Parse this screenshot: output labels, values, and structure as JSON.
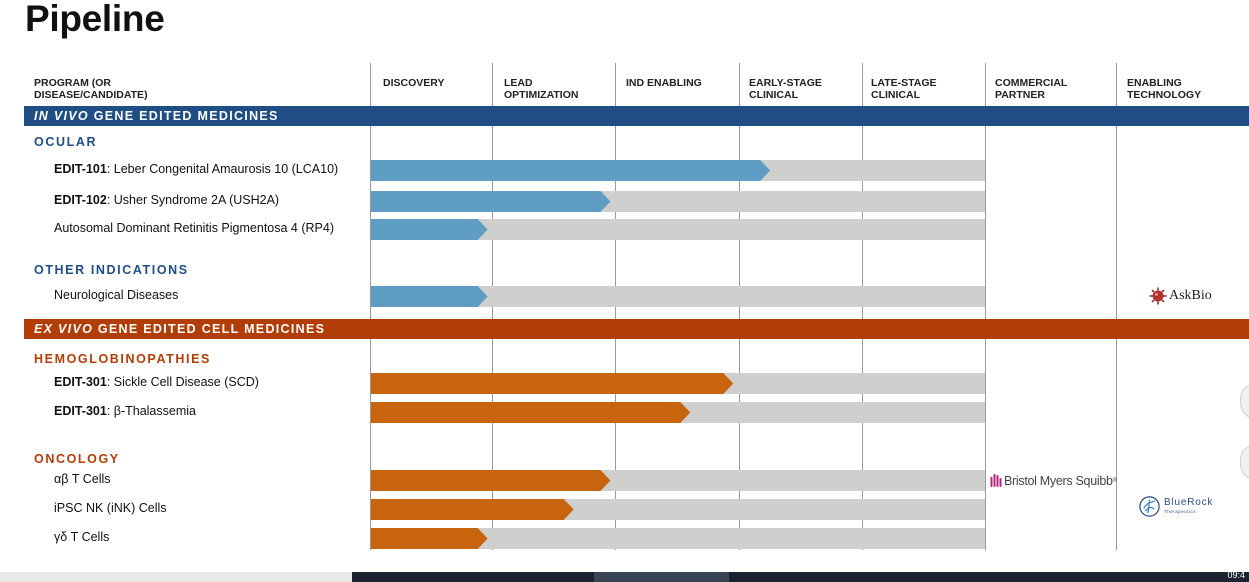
{
  "title": "Pipeline",
  "colors": {
    "invivo": "#1f4e84",
    "exvivo": "#b23d06",
    "ocular_bar": "#5f9dc4",
    "orange_bar": "#c8630e",
    "track": "#cfd0ce",
    "invivo_text": "#1f4e84",
    "exvivo_text": "#b23d06"
  },
  "columns": {
    "program": "PROGRAM (OR\nDISEASE/CANDIDATE)",
    "discovery": "DISCOVERY",
    "lead": "LEAD\nOPTIMIZATION",
    "ind": "IND ENABLING",
    "early": "EARLY-STAGE\nCLINICAL",
    "late": "LATE-STAGE\nCLINICAL",
    "partner": "COMMERCIAL\nPARTNER",
    "tech": "ENABLING\nTECHNOLOGY"
  },
  "bands": {
    "invivo": {
      "italic": "IN VIVO",
      "rest": " GENE EDITED MEDICINES"
    },
    "exvivo": {
      "italic": "EX VIVO",
      "rest": " GENE EDITED CELL MEDICINES"
    }
  },
  "sections": {
    "ocular": "OCULAR",
    "other": "OTHER INDICATIONS",
    "hemo": "HEMOGLOBINOPATHIES",
    "oncology": "ONCOLOGY"
  },
  "chart_data": {
    "type": "bar",
    "categories": [
      "DISCOVERY",
      "LEAD OPTIMIZATION",
      "IND ENABLING",
      "EARLY-STAGE CLINICAL",
      "LATE-STAGE CLINICAL"
    ],
    "xlim": [
      0,
      5
    ],
    "rows": [
      {
        "id": "r1",
        "bold": "EDIT-101",
        "text": ": Leber Congenital Amaurosis 10 (LCA10)",
        "progress": 3.25,
        "group": "invivo"
      },
      {
        "id": "r2",
        "bold": "EDIT-102",
        "text": ": Usher Syndrome 2A (USH2A)",
        "progress": 1.95,
        "group": "invivo"
      },
      {
        "id": "r3",
        "bold": "",
        "text": "Autosomal Dominant Retinitis Pigmentosa 4 (RP4)",
        "progress": 0.95,
        "group": "invivo"
      },
      {
        "id": "r4",
        "bold": "",
        "text": "Neurological Diseases",
        "progress": 0.95,
        "group": "invivo"
      },
      {
        "id": "r5",
        "bold": "EDIT-301",
        "text": ": Sickle Cell Disease (SCD)",
        "progress": 2.95,
        "group": "exvivo"
      },
      {
        "id": "r6",
        "bold": "EDIT-301",
        "text": ": β-Thalassemia",
        "progress": 2.6,
        "group": "exvivo"
      },
      {
        "id": "r7",
        "bold": "",
        "text": "αβ T Cells",
        "progress": 1.95,
        "group": "exvivo"
      },
      {
        "id": "r8",
        "bold": "",
        "text": "iPSC NK (iNK) Cells",
        "progress": 1.65,
        "group": "exvivo"
      },
      {
        "id": "r9",
        "bold": "",
        "text": "γδ T Cells",
        "progress": 0.95,
        "group": "exvivo"
      }
    ]
  },
  "logos": {
    "askbio": "AskBio",
    "bms": "Bristol Myers Squibb",
    "bms_tm": "®",
    "bluerock": "BlueRock",
    "bluerock_sub": "Therapeutics"
  },
  "taskbar": {
    "clock": "09:4"
  }
}
